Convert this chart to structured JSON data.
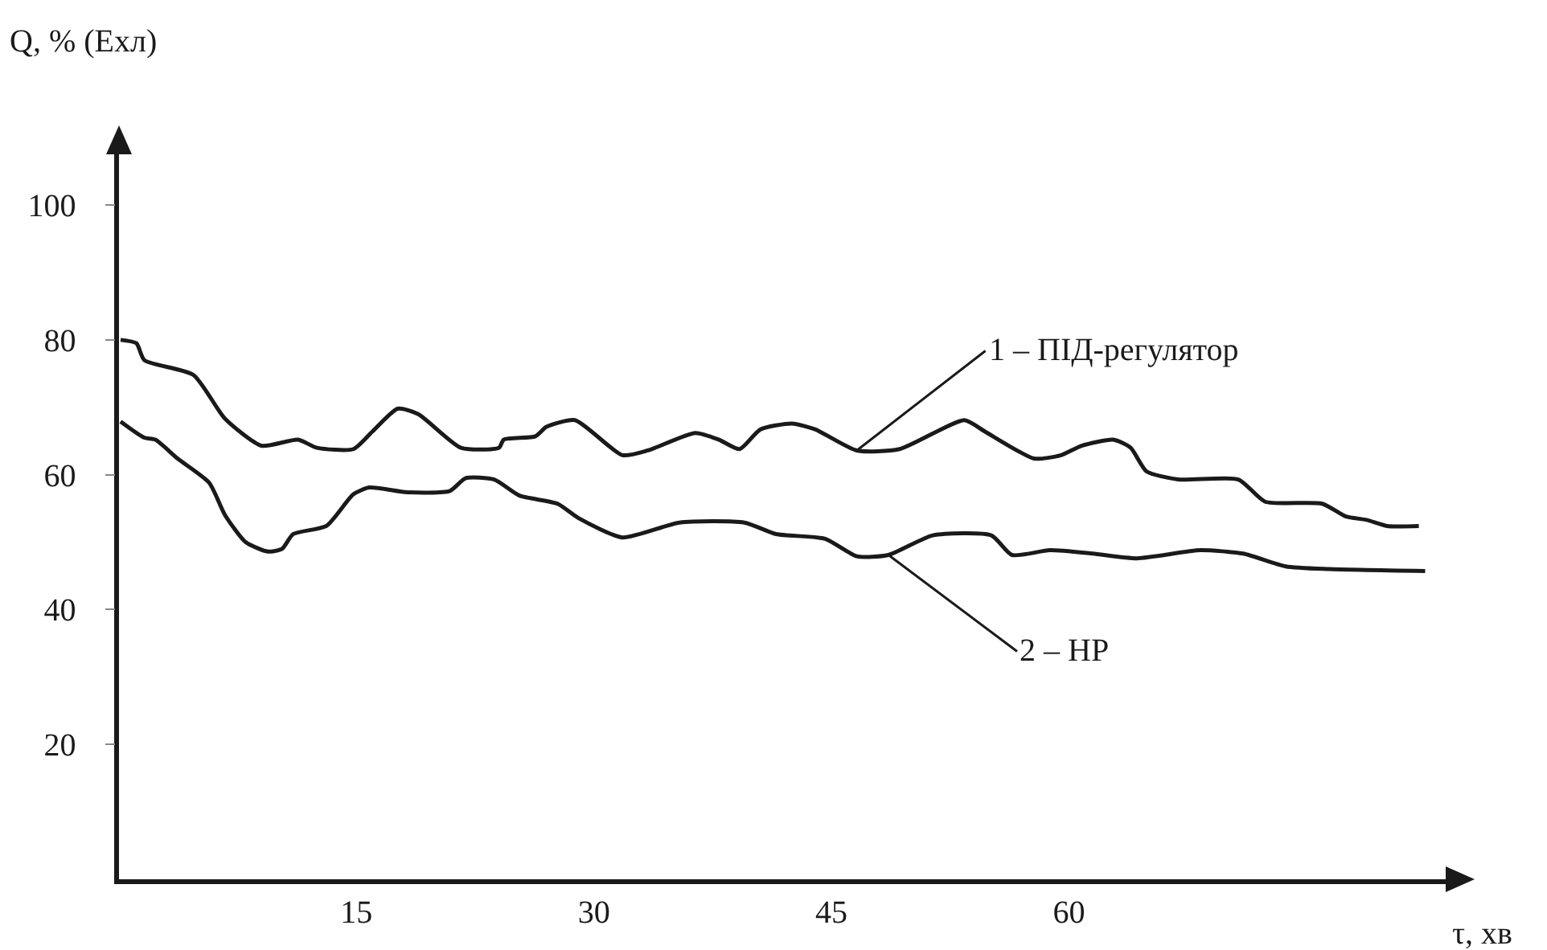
{
  "chart_data": {
    "type": "line",
    "xlabel": "τ, хв",
    "ylabel": "Q, % (Ехл)",
    "xlim": [
      0,
      84
    ],
    "ylim": [
      0,
      108
    ],
    "xticks": [
      15,
      30,
      45,
      60
    ],
    "yticks": [
      20,
      40,
      60,
      80,
      100
    ],
    "grid": false,
    "legend": false,
    "marker": "none",
    "line_style": "solid",
    "series": [
      {
        "name": "1 – ПІД-регулятор",
        "color": "#1a1a1a",
        "x": [
          0.1,
          1.1,
          1.6,
          4.7,
          6.7,
          9,
          11.3,
          12.5,
          14.8,
          16,
          17.6,
          18.9,
          21.6,
          24,
          24.3,
          26.3,
          27,
          28.8,
          31.8,
          33.4,
          36.4,
          37.9,
          39.2,
          40.5,
          42.5,
          44,
          46.6,
          49.3,
          53.4,
          54.7,
          57.8,
          59.5,
          60.8,
          62.8,
          63.9,
          64.9,
          66.9,
          70.7,
          72.4,
          76,
          77.5,
          78.8,
          80.1,
          82.1
        ],
        "values": [
          80,
          79.5,
          77,
          74.8,
          68.3,
          64.3,
          65.2,
          64,
          63.8,
          66.4,
          69.8,
          69,
          64,
          64,
          65.2,
          65.7,
          67.1,
          68.1,
          62.9,
          63.6,
          66.2,
          65.2,
          63.8,
          66.7,
          67.6,
          66.7,
          63.6,
          63.8,
          68.1,
          66.4,
          62.4,
          62.9,
          64.3,
          65.2,
          64,
          60.5,
          59.3,
          59.3,
          56,
          55.7,
          53.8,
          53.3,
          52.4,
          52.4
        ]
      },
      {
        "name": "2 – НР",
        "color": "#1a1a1a",
        "x": [
          0.1,
          1.6,
          2.3,
          3.7,
          5.7,
          6.7,
          8,
          9.4,
          10.3,
          11,
          13.1,
          14.8,
          15.8,
          18.2,
          20.9,
          21.9,
          23.7,
          25.3,
          27.7,
          29,
          31.8,
          35.4,
          39.5,
          41.5,
          44.6,
          46.6,
          48.6,
          51.4,
          55.1,
          56.4,
          58.8,
          61.5,
          64.3,
          68.3,
          71,
          73.7,
          76.4,
          82.5
        ],
        "values": [
          67.9,
          65.5,
          65.2,
          62.4,
          58.8,
          54,
          50,
          48.6,
          49,
          51.2,
          52.4,
          57.1,
          58.1,
          57.4,
          57.6,
          59.5,
          59.3,
          56.9,
          55.7,
          53.6,
          50.7,
          52.9,
          52.9,
          51.2,
          50.5,
          47.9,
          48.1,
          51,
          51,
          48.1,
          48.8,
          48.3,
          47.6,
          48.8,
          48.3,
          46.4,
          46,
          45.7
        ]
      }
    ]
  }
}
